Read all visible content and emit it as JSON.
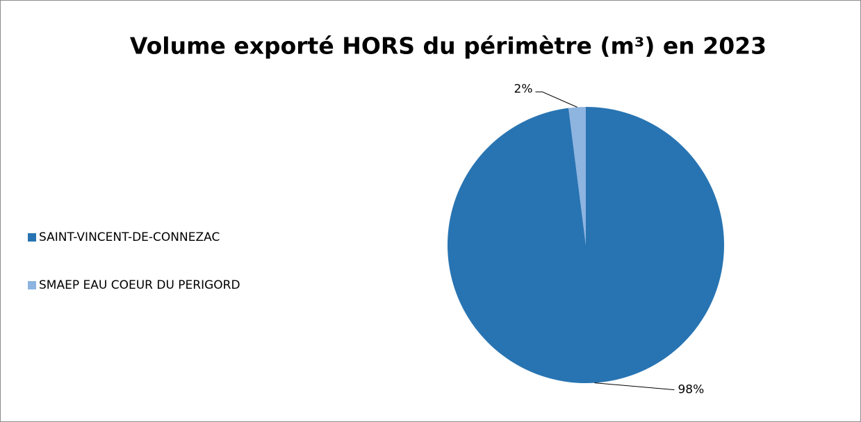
{
  "chart_data": {
    "type": "pie",
    "title": "Volume exporté HORS du périmètre (m³) en 2023",
    "categories": [
      "SAINT-VINCENT-DE-CONNEZAC",
      "SMAEP EAU COEUR DU PERIGORD"
    ],
    "values": [
      98,
      2
    ],
    "value_labels": [
      "98%",
      "2%"
    ],
    "colors": [
      "#2874b2",
      "#8eb4e0"
    ],
    "legend": "left"
  }
}
